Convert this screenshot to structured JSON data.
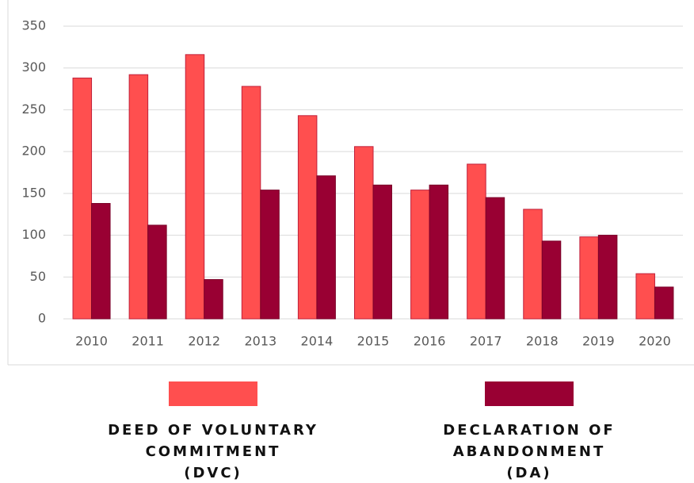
{
  "chart_data": {
    "type": "bar",
    "categories": [
      "2010",
      "2011",
      "2012",
      "2013",
      "2014",
      "2015",
      "2016",
      "2017",
      "2018",
      "2019",
      "2020"
    ],
    "series": [
      {
        "name": "DEED OF VOLUNTARY\nCOMMITMENT\n(DVC)",
        "color": "#ff4f4f",
        "values": [
          288,
          292,
          316,
          278,
          243,
          206,
          154,
          185,
          131,
          98,
          54
        ]
      },
      {
        "name": "DECLARATION OF\nABANDONMENT\n(DA)",
        "color": "#990033",
        "values": [
          138,
          112,
          47,
          154,
          171,
          160,
          160,
          145,
          93,
          100,
          38
        ]
      }
    ],
    "ylim": [
      0,
      350
    ],
    "yticks": [
      0,
      50,
      100,
      150,
      200,
      250,
      300,
      350
    ],
    "grid": true
  }
}
